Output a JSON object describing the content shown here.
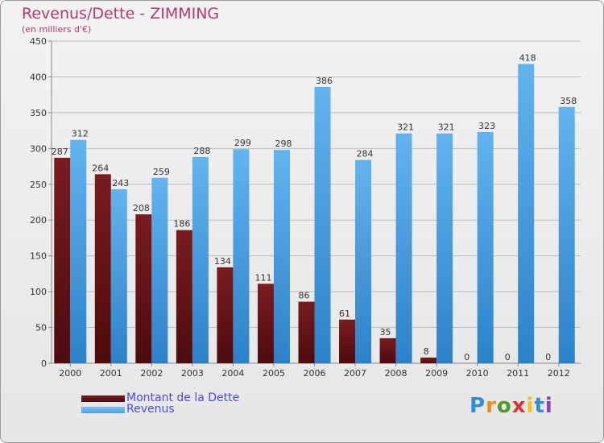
{
  "title": "Revenus/Dette - ZIMMING",
  "subtitle": "(en milliers d'€)",
  "colors": {
    "dette": "#7a1c1f",
    "revenus": "#4aa3e6",
    "title": "#b5386b",
    "legend_text": "#4a4ae8"
  },
  "legend": {
    "dette_label": "Montant de la Dette",
    "revenus_label": "Revenus"
  },
  "logo": {
    "text": "Proxiti"
  },
  "chart_data": {
    "type": "bar",
    "categories": [
      "2000",
      "2001",
      "2002",
      "2003",
      "2004",
      "2005",
      "2006",
      "2007",
      "2008",
      "2009",
      "2010",
      "2011",
      "2012"
    ],
    "series": [
      {
        "name": "Montant de la Dette",
        "values": [
          287,
          264,
          208,
          186,
          134,
          111,
          86,
          61,
          35,
          8,
          0,
          0,
          0
        ]
      },
      {
        "name": "Revenus",
        "values": [
          312,
          243,
          259,
          288,
          299,
          298,
          386,
          284,
          321,
          321,
          323,
          418,
          358
        ]
      }
    ],
    "ylim": [
      0,
      450
    ],
    "yticks": [
      0,
      50,
      100,
      150,
      200,
      250,
      300,
      350,
      400,
      450
    ],
    "grid": true,
    "legend_position": "bottom-left"
  }
}
